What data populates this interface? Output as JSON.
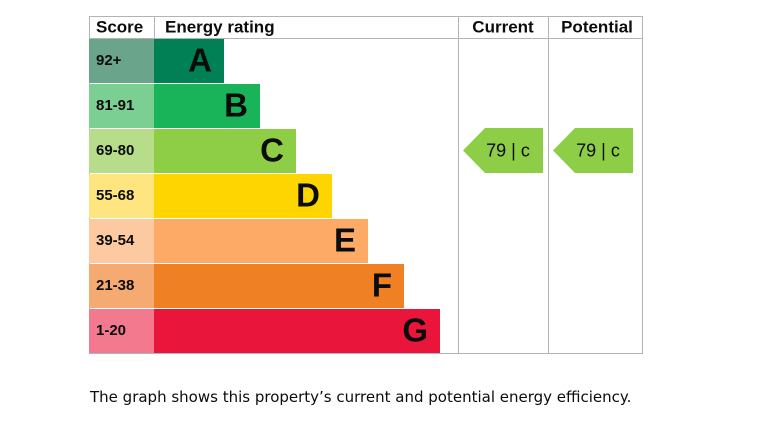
{
  "header": {
    "score": "Score",
    "rating": "Energy rating",
    "current": "Current",
    "potential": "Potential"
  },
  "bands": [
    {
      "score": "92+",
      "letter": "A",
      "color": "#008054",
      "score_color": "#6aa58b"
    },
    {
      "score": "81-91",
      "letter": "B",
      "color": "#19b459",
      "score_color": "#7bcf92"
    },
    {
      "score": "69-80",
      "letter": "C",
      "color": "#8dce46",
      "score_color": "#b7dc8a"
    },
    {
      "score": "55-68",
      "letter": "D",
      "color": "#ffd500",
      "score_color": "#ffe57f"
    },
    {
      "score": "39-54",
      "letter": "E",
      "color": "#fcaa65",
      "score_color": "#fdc9a0"
    },
    {
      "score": "21-38",
      "letter": "F",
      "color": "#ef8023",
      "score_color": "#f5aa72"
    },
    {
      "score": "1-20",
      "letter": "G",
      "color": "#e9153b",
      "score_color": "#f3798e"
    }
  ],
  "current": {
    "label": "79 | c",
    "color": "#8dce46"
  },
  "potential": {
    "label": "79 | c",
    "color": "#8dce46"
  },
  "caption": "The graph shows this property’s current and potential energy efficiency."
}
